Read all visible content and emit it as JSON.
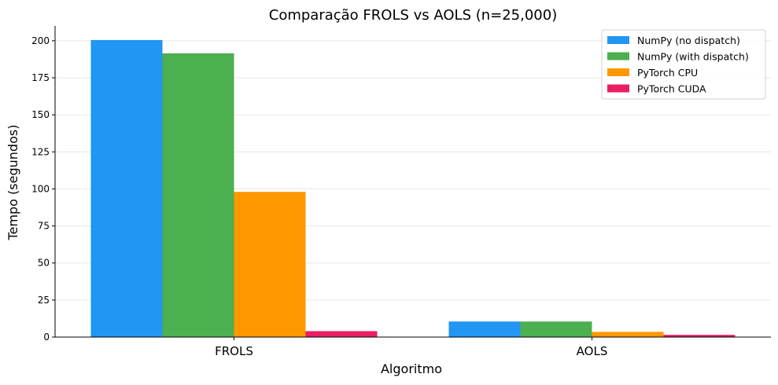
{
  "chart_data": {
    "type": "bar",
    "title": "Comparação FROLS vs AOLS (n=25,000)",
    "xlabel": "Algoritmo",
    "ylabel": "Tempo (segundos)",
    "categories": [
      "FROLS",
      "AOLS"
    ],
    "series": [
      {
        "name": "NumPy (no dispatch)",
        "values": [
          200.5,
          10.5
        ],
        "color": "#2196F3"
      },
      {
        "name": "NumPy (with dispatch)",
        "values": [
          191.5,
          10.5
        ],
        "color": "#4CAF50"
      },
      {
        "name": "PyTorch CPU",
        "values": [
          98.0,
          3.5
        ],
        "color": "#FF9800"
      },
      {
        "name": "PyTorch CUDA",
        "values": [
          4.0,
          1.5
        ],
        "color": "#E91E63"
      }
    ],
    "ylim": [
      0,
      210
    ],
    "yticks": [
      0,
      25,
      50,
      75,
      100,
      125,
      150,
      175,
      200
    ],
    "grid": "horizontal",
    "legend_position": "top-right"
  }
}
